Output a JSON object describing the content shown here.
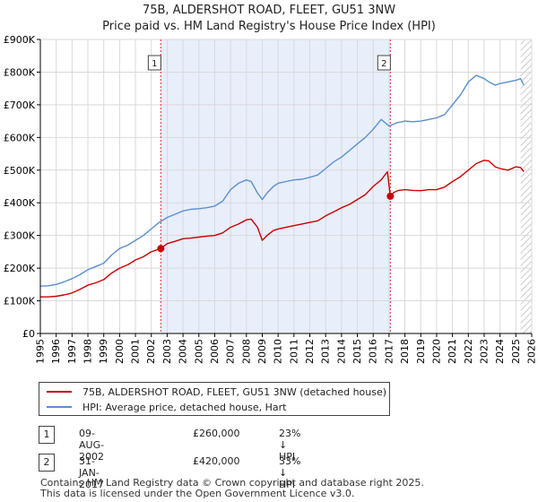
{
  "header": {
    "title": "75B, ALDERSHOT ROAD, FLEET, GU51 3NW",
    "subtitle": "Price paid vs. HM Land Registry's House Price Index (HPI)"
  },
  "colors": {
    "property": "#cc0000",
    "hpi": "#5b8fd0",
    "shade": "#e8eefa",
    "grid": "#d9d9d9",
    "vline": "#dd3333"
  },
  "chart_data": {
    "type": "line",
    "title": "75B, ALDERSHOT ROAD, FLEET, GU51 3NW",
    "subtitle": "Price paid vs. HM Land Registry's House Price Index (HPI)",
    "xlabel": "",
    "ylabel": "",
    "xlim": [
      1995,
      2026
    ],
    "ylim": [
      0,
      900000
    ],
    "x_ticks": [
      1995,
      1996,
      1997,
      1998,
      1999,
      2000,
      2001,
      2002,
      2003,
      2004,
      2005,
      2006,
      2007,
      2008,
      2009,
      2010,
      2011,
      2012,
      2013,
      2014,
      2015,
      2016,
      2017,
      2018,
      2019,
      2020,
      2021,
      2022,
      2023,
      2024,
      2025,
      2026
    ],
    "y_ticks": [
      {
        "value": 0,
        "label": "£0"
      },
      {
        "value": 100000,
        "label": "£100K"
      },
      {
        "value": 200000,
        "label": "£200K"
      },
      {
        "value": 300000,
        "label": "£300K"
      },
      {
        "value": 400000,
        "label": "£400K"
      },
      {
        "value": 500000,
        "label": "£500K"
      },
      {
        "value": 600000,
        "label": "£600K"
      },
      {
        "value": 700000,
        "label": "£700K"
      },
      {
        "value": 800000,
        "label": "£800K"
      },
      {
        "value": 900000,
        "label": "£900K"
      }
    ],
    "grid": true,
    "series": [
      {
        "name": "75B, ALDERSHOT ROAD, FLEET, GU51 3NW (detached house)",
        "color": "#cc0000",
        "x": [
          1995,
          1995.5,
          1996,
          1996.5,
          1997,
          1997.5,
          1998,
          1998.5,
          1999,
          1999.5,
          2000,
          2000.5,
          2001,
          2001.5,
          2002,
          2002.6,
          2003,
          2003.5,
          2004,
          2004.5,
          2005,
          2005.5,
          2006,
          2006.5,
          2007,
          2007.5,
          2008,
          2008.3,
          2008.7,
          2009,
          2009.3,
          2009.7,
          2010,
          2010.5,
          2011,
          2011.5,
          2012,
          2012.5,
          2013,
          2013.5,
          2014,
          2014.5,
          2015,
          2015.5,
          2016,
          2016.5,
          2016.9,
          2017.08,
          2017.3,
          2017.6,
          2018,
          2018.5,
          2019,
          2019.5,
          2020,
          2020.5,
          2021,
          2021.5,
          2022,
          2022.5,
          2023,
          2023.3,
          2023.7,
          2024,
          2024.5,
          2025,
          2025.3,
          2025.5
        ],
        "y": [
          112000,
          112000,
          114000,
          118000,
          124000,
          135000,
          148000,
          155000,
          165000,
          185000,
          200000,
          210000,
          225000,
          235000,
          250000,
          260000,
          275000,
          282000,
          290000,
          292000,
          295000,
          298000,
          300000,
          308000,
          325000,
          335000,
          348000,
          350000,
          325000,
          285000,
          300000,
          315000,
          320000,
          325000,
          330000,
          335000,
          340000,
          345000,
          360000,
          372000,
          385000,
          395000,
          410000,
          425000,
          450000,
          470000,
          495000,
          420000,
          432000,
          438000,
          440000,
          438000,
          437000,
          440000,
          440000,
          448000,
          465000,
          480000,
          500000,
          520000,
          530000,
          528000,
          510000,
          505000,
          500000,
          510000,
          508000,
          495000
        ]
      },
      {
        "name": "HPI: Average price, detached house, Hart",
        "color": "#5b8fd0",
        "x": [
          1995,
          1995.5,
          1996,
          1996.5,
          1997,
          1997.5,
          1998,
          1998.5,
          1999,
          1999.5,
          2000,
          2000.5,
          2001,
          2001.5,
          2002,
          2002.5,
          2003,
          2003.5,
          2004,
          2004.5,
          2005,
          2005.5,
          2006,
          2006.5,
          2007,
          2007.5,
          2008,
          2008.3,
          2008.7,
          2009,
          2009.3,
          2009.7,
          2010,
          2010.5,
          2011,
          2011.5,
          2012,
          2012.5,
          2013,
          2013.5,
          2014,
          2014.5,
          2015,
          2015.5,
          2016,
          2016.5,
          2017,
          2017.5,
          2018,
          2018.5,
          2019,
          2019.5,
          2020,
          2020.5,
          2021,
          2021.5,
          2022,
          2022.5,
          2023,
          2023.3,
          2023.7,
          2024,
          2024.5,
          2025,
          2025.3,
          2025.5
        ],
        "y": [
          145000,
          146000,
          150000,
          158000,
          168000,
          180000,
          195000,
          205000,
          215000,
          240000,
          260000,
          270000,
          285000,
          300000,
          320000,
          340000,
          355000,
          365000,
          375000,
          380000,
          382000,
          385000,
          390000,
          405000,
          440000,
          460000,
          470000,
          465000,
          430000,
          410000,
          430000,
          450000,
          460000,
          465000,
          470000,
          472000,
          478000,
          485000,
          505000,
          525000,
          540000,
          560000,
          580000,
          600000,
          625000,
          655000,
          635000,
          645000,
          650000,
          648000,
          650000,
          655000,
          660000,
          670000,
          700000,
          730000,
          770000,
          790000,
          780000,
          770000,
          760000,
          765000,
          770000,
          775000,
          780000,
          760000
        ]
      }
    ],
    "annotations": [
      {
        "id": "1",
        "x": 2002.6,
        "y": 260000,
        "date": "09-AUG-2002",
        "price": "£260,000",
        "hpi_delta": "23% ↓ HPI"
      },
      {
        "id": "2",
        "x": 2017.08,
        "y": 420000,
        "date": "31-JAN-2017",
        "price": "£420,000",
        "hpi_delta": "33% ↓ HPI"
      }
    ],
    "shaded_range": [
      2002.6,
      2017.08
    ],
    "hatched_from": 2025.3,
    "legend_position": "below"
  },
  "footer": {
    "line1": "Contains HM Land Registry data © Crown copyright and database right 2025.",
    "line2": "This data is licensed under the Open Government Licence v3.0."
  }
}
